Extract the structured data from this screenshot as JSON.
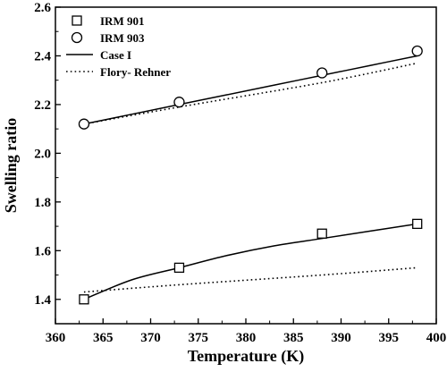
{
  "chart_data": {
    "type": "scatter",
    "title": "",
    "xlabel": "Temperature (K)",
    "ylabel": "Swelling ratio",
    "xlim": [
      360,
      400
    ],
    "ylim": [
      1.3,
      2.6
    ],
    "x_ticks": [
      360,
      365,
      370,
      375,
      380,
      385,
      390,
      395,
      400
    ],
    "y_ticks": [
      1.4,
      1.6,
      1.8,
      2.0,
      2.2,
      2.4,
      2.6
    ],
    "x_tick_labels": [
      "360",
      "365",
      "370",
      "375",
      "380",
      "385",
      "390",
      "395",
      "400"
    ],
    "y_tick_labels": [
      "1.4",
      "1.6",
      "1.8",
      "2.0",
      "2.2",
      "2.4",
      "2.6"
    ],
    "grid": false,
    "legend_position": "top-left",
    "series": [
      {
        "name": "IRM 901",
        "kind": "markers",
        "marker": "square",
        "x": [
          363,
          373,
          388,
          398
        ],
        "y": [
          1.4,
          1.53,
          1.67,
          1.71
        ]
      },
      {
        "name": "IRM 903",
        "kind": "markers",
        "marker": "circle",
        "x": [
          363,
          373,
          388,
          398
        ],
        "y": [
          2.12,
          2.21,
          2.33,
          2.42
        ]
      },
      {
        "name": "Case I",
        "kind": "line",
        "style": "solid",
        "x": [
          363,
          368,
          373,
          378,
          383,
          388,
          393,
          398
        ],
        "y": [
          1.4,
          1.48,
          1.53,
          1.58,
          1.62,
          1.65,
          1.68,
          1.71
        ]
      },
      {
        "name": "",
        "kind": "line",
        "style": "solid",
        "legend": false,
        "x": [
          363,
          368,
          373,
          378,
          383,
          388,
          393,
          398
        ],
        "y": [
          2.12,
          2.16,
          2.2,
          2.24,
          2.28,
          2.32,
          2.36,
          2.4
        ]
      },
      {
        "name": "Flory- Rehner",
        "kind": "line",
        "style": "dotted",
        "x": [
          363,
          373,
          388,
          398
        ],
        "y": [
          1.43,
          1.46,
          1.5,
          1.53
        ]
      },
      {
        "name": "",
        "kind": "line",
        "style": "dotted",
        "legend": false,
        "x": [
          363,
          373,
          388,
          398
        ],
        "y": [
          2.12,
          2.19,
          2.29,
          2.37
        ]
      }
    ]
  }
}
